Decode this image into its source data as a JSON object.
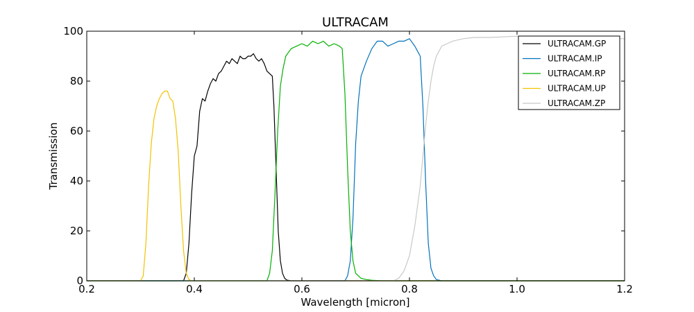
{
  "chart_data": {
    "type": "line",
    "title": "ULTRACAM",
    "xlabel": "Wavelength [micron]",
    "ylabel": "Transmission",
    "xlim": [
      0.2,
      1.2
    ],
    "ylim": [
      0,
      100
    ],
    "xticks": [
      0.2,
      0.4,
      0.6,
      0.8,
      1.0,
      1.2
    ],
    "xtick_labels": [
      "0.2",
      "0.4",
      "0.6",
      "0.8",
      "1.0",
      "1.2"
    ],
    "yticks": [
      0,
      20,
      40,
      60,
      80,
      100
    ],
    "ytick_labels": [
      "0",
      "20",
      "40",
      "60",
      "80",
      "100"
    ],
    "grid": false,
    "legend_position": "top-right",
    "series": [
      {
        "name": "ULTRACAM.GP",
        "color": "#000000",
        "x": [
          0.2,
          0.38,
          0.385,
          0.39,
          0.395,
          0.4,
          0.405,
          0.41,
          0.415,
          0.42,
          0.425,
          0.43,
          0.435,
          0.44,
          0.445,
          0.45,
          0.455,
          0.46,
          0.465,
          0.47,
          0.475,
          0.48,
          0.485,
          0.49,
          0.495,
          0.5,
          0.505,
          0.51,
          0.515,
          0.52,
          0.525,
          0.53,
          0.535,
          0.54,
          0.545,
          0.548,
          0.552,
          0.556,
          0.56,
          0.564,
          0.568,
          0.572,
          0.58,
          0.59,
          1.2
        ],
        "y": [
          0,
          0,
          3,
          15,
          35,
          50,
          54,
          68,
          73,
          72,
          76,
          79,
          81,
          80,
          83,
          84,
          86,
          88,
          87,
          89,
          88,
          87,
          90,
          89,
          89,
          90,
          90,
          91,
          89,
          88,
          89,
          87,
          84,
          83,
          82,
          70,
          45,
          20,
          8,
          3,
          1,
          0.3,
          0,
          0,
          0
        ]
      },
      {
        "name": "ULTRACAM.IP",
        "color": "#0072bd",
        "x": [
          0.2,
          0.68,
          0.685,
          0.69,
          0.695,
          0.7,
          0.705,
          0.71,
          0.72,
          0.73,
          0.74,
          0.75,
          0.76,
          0.77,
          0.78,
          0.79,
          0.8,
          0.81,
          0.815,
          0.82,
          0.825,
          0.83,
          0.835,
          0.84,
          0.845,
          0.85,
          0.86,
          1.2
        ],
        "y": [
          0,
          0,
          2,
          8,
          25,
          55,
          72,
          82,
          88,
          93,
          96,
          96,
          94,
          95,
          96,
          96,
          97,
          94,
          92,
          90,
          70,
          40,
          15,
          5,
          2,
          0.5,
          0,
          0
        ]
      },
      {
        "name": "ULTRACAM.RP",
        "color": "#00b000",
        "x": [
          0.2,
          0.535,
          0.54,
          0.545,
          0.55,
          0.555,
          0.56,
          0.565,
          0.57,
          0.58,
          0.59,
          0.6,
          0.61,
          0.62,
          0.63,
          0.64,
          0.65,
          0.66,
          0.67,
          0.675,
          0.68,
          0.685,
          0.69,
          0.695,
          0.7,
          0.71,
          0.72,
          0.73,
          0.75,
          1.2
        ],
        "y": [
          0,
          0,
          3,
          12,
          35,
          60,
          78,
          85,
          90,
          93,
          94,
          95,
          94,
          96,
          95,
          96,
          94,
          95,
          94,
          93,
          75,
          45,
          20,
          8,
          3,
          1,
          0.5,
          0.2,
          0,
          0
        ]
      },
      {
        "name": "ULTRACAM.UP",
        "color": "#f2c200",
        "x": [
          0.2,
          0.3,
          0.305,
          0.31,
          0.315,
          0.32,
          0.325,
          0.33,
          0.335,
          0.34,
          0.345,
          0.35,
          0.355,
          0.36,
          0.365,
          0.37,
          0.375,
          0.38,
          0.385,
          0.39,
          0.395,
          1.2
        ],
        "y": [
          0,
          0,
          2,
          15,
          38,
          55,
          65,
          70,
          73,
          75,
          76,
          76,
          73,
          72,
          65,
          52,
          30,
          12,
          3,
          0.5,
          0,
          0
        ]
      },
      {
        "name": "ULTRACAM.ZP",
        "color": "#c8c8c8",
        "x": [
          0.2,
          0.77,
          0.78,
          0.79,
          0.8,
          0.81,
          0.82,
          0.825,
          0.83,
          0.835,
          0.84,
          0.845,
          0.85,
          0.855,
          0.86,
          0.87,
          0.88,
          0.89,
          0.9,
          0.92,
          0.95,
          1.0,
          1.05,
          1.1,
          1.15,
          1.2
        ],
        "y": [
          0,
          0,
          1,
          4,
          10,
          22,
          38,
          50,
          62,
          72,
          80,
          86,
          90,
          92,
          94,
          95,
          96,
          96.5,
          97,
          97.5,
          97.5,
          98,
          97.5,
          97,
          97,
          97
        ]
      }
    ]
  }
}
